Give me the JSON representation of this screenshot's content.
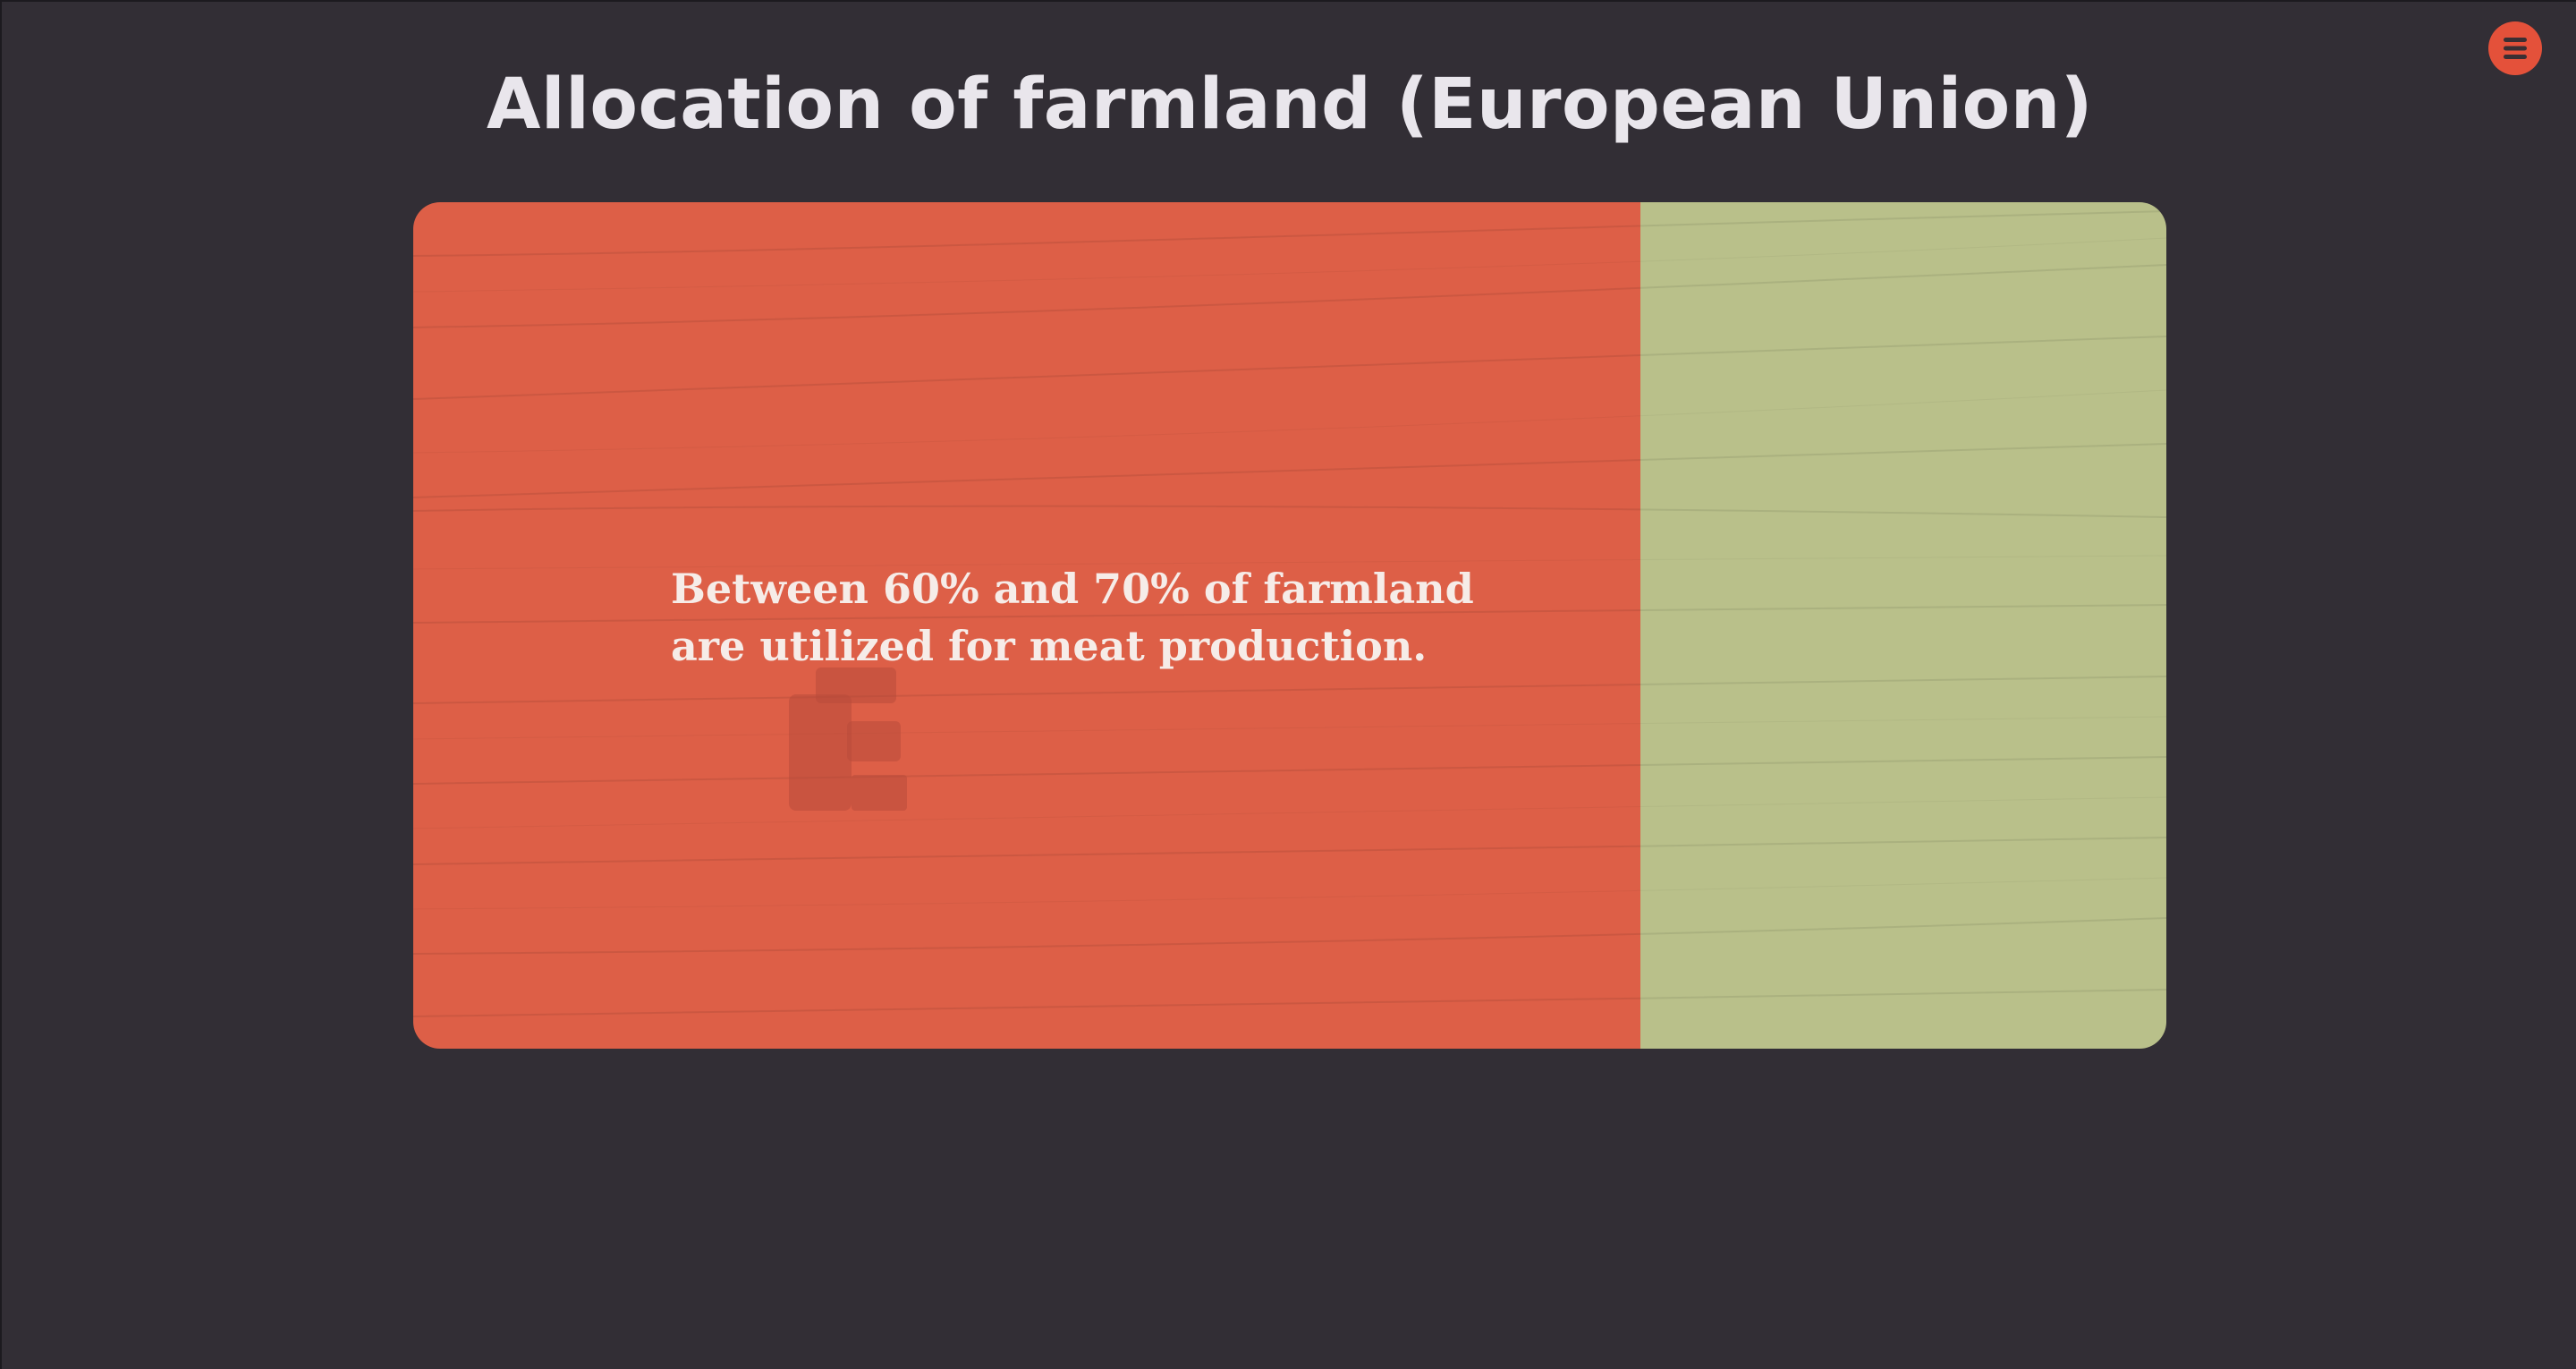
{
  "page": {
    "title": "Allocation of farmland (European Union)"
  },
  "menu": {
    "icon": "hamburger-menu-icon",
    "accent_color": "#e4513a"
  },
  "card": {
    "statement": "Between 60% and 70% of farmland are utilized for meat production.",
    "meat_share_fraction": 0.7,
    "meat_color": "#dd5f47",
    "crop_color": "#b9c08a"
  },
  "colors": {
    "background": "#322e35",
    "title_text": "#e9e6ec"
  }
}
